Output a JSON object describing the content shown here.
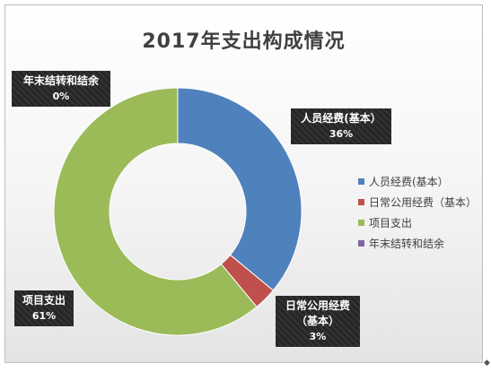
{
  "chart_data": {
    "type": "pie",
    "title": "2017年支出构成情况",
    "donut": true,
    "legend_position": "right",
    "slices": [
      {
        "label": "人员经费(基本)",
        "legend_label": "人员经费(基本）",
        "value": 36,
        "pct_label": "36%",
        "color": "#4f81bd",
        "callout_lines": [
          "人员经费(基本）"
        ]
      },
      {
        "label": "日常公用经费（基本）",
        "legend_label": "日常公用经费（基本）",
        "value": 3,
        "pct_label": "3%",
        "color": "#c0504d",
        "callout_lines": [
          "日常公用经费",
          "（基本）"
        ]
      },
      {
        "label": "项目支出",
        "legend_label": "项目支出",
        "value": 61,
        "pct_label": "61%",
        "color": "#9bbb59",
        "callout_lines": [
          "项目支出"
        ]
      },
      {
        "label": "年末结转和结余",
        "legend_label": "年末结转和结余",
        "value": 0,
        "pct_label": "0%",
        "color": "#8064a2",
        "callout_lines": [
          "年末结转和结余"
        ]
      }
    ]
  }
}
